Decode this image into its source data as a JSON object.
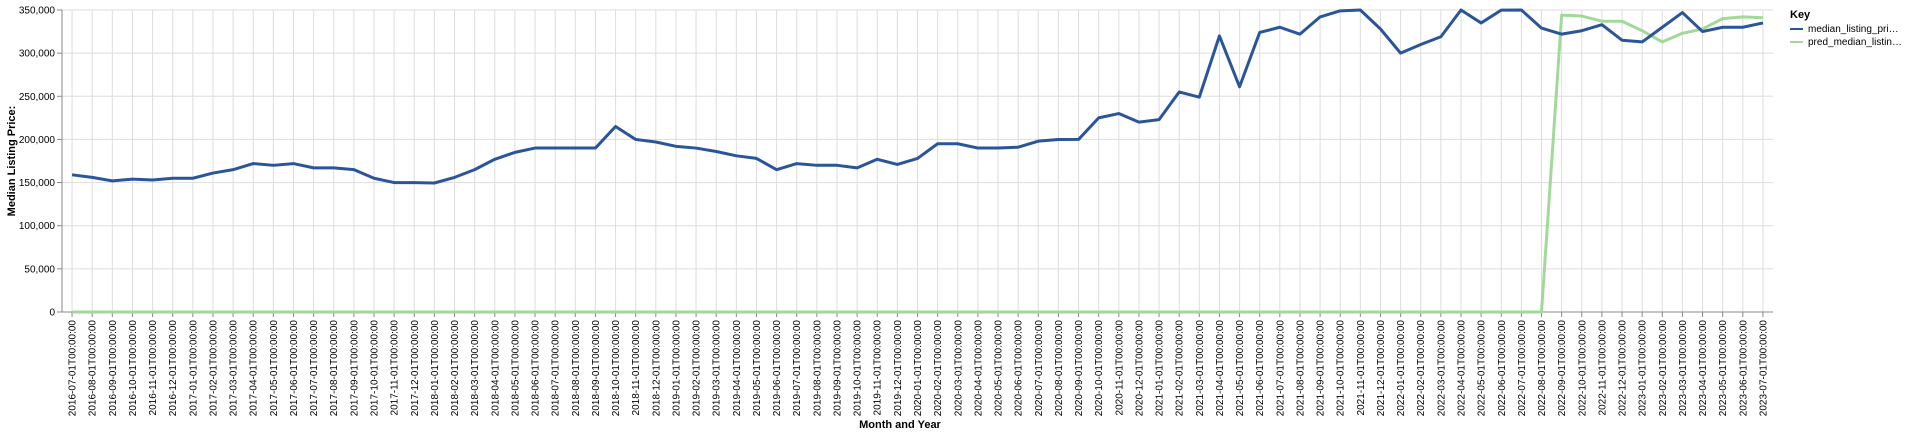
{
  "chart_data": {
    "type": "line",
    "xlabel": "Month and Year",
    "ylabel": "Median Listing Price:",
    "ylim": [
      0,
      350000
    ],
    "yticks": [
      "0",
      "50,000",
      "100,000",
      "150,000",
      "200,000",
      "250,000",
      "300,000",
      "350,000"
    ],
    "ytick_values": [
      0,
      50000,
      100000,
      150000,
      200000,
      250000,
      300000,
      350000
    ],
    "grid": true,
    "legend": {
      "title": "Key",
      "placement": "right"
    },
    "categories": [
      "2016-07-01T00:00:00",
      "2016-08-01T00:00:00",
      "2016-09-01T00:00:00",
      "2016-10-01T00:00:00",
      "2016-11-01T00:00:00",
      "2016-12-01T00:00:00",
      "2017-01-01T00:00:00",
      "2017-02-01T00:00:00",
      "2017-03-01T00:00:00",
      "2017-04-01T00:00:00",
      "2017-05-01T00:00:00",
      "2017-06-01T00:00:00",
      "2017-07-01T00:00:00",
      "2017-08-01T00:00:00",
      "2017-09-01T00:00:00",
      "2017-10-01T00:00:00",
      "2017-11-01T00:00:00",
      "2017-12-01T00:00:00",
      "2018-01-01T00:00:00",
      "2018-02-01T00:00:00",
      "2018-03-01T00:00:00",
      "2018-04-01T00:00:00",
      "2018-05-01T00:00:00",
      "2018-06-01T00:00:00",
      "2018-07-01T00:00:00",
      "2018-08-01T00:00:00",
      "2018-09-01T00:00:00",
      "2018-10-01T00:00:00",
      "2018-11-01T00:00:00",
      "2018-12-01T00:00:00",
      "2019-01-01T00:00:00",
      "2019-02-01T00:00:00",
      "2019-03-01T00:00:00",
      "2019-04-01T00:00:00",
      "2019-05-01T00:00:00",
      "2019-06-01T00:00:00",
      "2019-07-01T00:00:00",
      "2019-08-01T00:00:00",
      "2019-09-01T00:00:00",
      "2019-10-01T00:00:00",
      "2019-11-01T00:00:00",
      "2019-12-01T00:00:00",
      "2020-01-01T00:00:00",
      "2020-02-01T00:00:00",
      "2020-03-01T00:00:00",
      "2020-04-01T00:00:00",
      "2020-05-01T00:00:00",
      "2020-06-01T00:00:00",
      "2020-07-01T00:00:00",
      "2020-08-01T00:00:00",
      "2020-09-01T00:00:00",
      "2020-10-01T00:00:00",
      "2020-11-01T00:00:00",
      "2020-12-01T00:00:00",
      "2021-01-01T00:00:00",
      "2021-02-01T00:00:00",
      "2021-03-01T00:00:00",
      "2021-04-01T00:00:00",
      "2021-05-01T00:00:00",
      "2021-06-01T00:00:00",
      "2021-07-01T00:00:00",
      "2021-08-01T00:00:00",
      "2021-09-01T00:00:00",
      "2021-10-01T00:00:00",
      "2021-11-01T00:00:00",
      "2021-12-01T00:00:00",
      "2022-01-01T00:00:00",
      "2022-02-01T00:00:00",
      "2022-03-01T00:00:00",
      "2022-04-01T00:00:00",
      "2022-05-01T00:00:00",
      "2022-06-01T00:00:00",
      "2022-07-01T00:00:00",
      "2022-08-01T00:00:00",
      "2022-09-01T00:00:00",
      "2022-10-01T00:00:00",
      "2022-11-01T00:00:00",
      "2022-12-01T00:00:00",
      "2023-01-01T00:00:00",
      "2023-02-01T00:00:00",
      "2023-03-01T00:00:00",
      "2023-04-01T00:00:00",
      "2023-05-01T00:00:00",
      "2023-06-01T00:00:00",
      "2023-07-01T00:00:00"
    ],
    "series": [
      {
        "name": "median_listing_pri…",
        "color": "#2a5599",
        "values": [
          159000,
          156000,
          152000,
          154000,
          153000,
          155000,
          155000,
          161000,
          165000,
          172000,
          170000,
          172000,
          167000,
          167000,
          165000,
          155000,
          150000,
          150000,
          149500,
          156000,
          165000,
          177000,
          185000,
          190000,
          190000,
          190000,
          190000,
          215000,
          200000,
          197000,
          192000,
          190000,
          186000,
          181000,
          178000,
          165000,
          172000,
          170000,
          170000,
          167000,
          177000,
          171000,
          178000,
          195000,
          195000,
          190000,
          190000,
          191000,
          198000,
          199900,
          200000,
          225000,
          230000,
          220000,
          223000,
          255000,
          249000,
          320000,
          261000,
          324000,
          330000,
          322000,
          342000,
          349000,
          350000,
          328000,
          300000,
          310000,
          319000,
          350000,
          335000,
          349900,
          350000,
          329000,
          322000,
          326000,
          333000,
          315000,
          313000,
          330000,
          347000,
          325000,
          330000,
          330000,
          335000
        ]
      },
      {
        "name": "pred_median_listin…",
        "color": "#a2d99a",
        "values": [
          0,
          0,
          0,
          0,
          0,
          0,
          0,
          0,
          0,
          0,
          0,
          0,
          0,
          0,
          0,
          0,
          0,
          0,
          0,
          0,
          0,
          0,
          0,
          0,
          0,
          0,
          0,
          0,
          0,
          0,
          0,
          0,
          0,
          0,
          0,
          0,
          0,
          0,
          0,
          0,
          0,
          0,
          0,
          0,
          0,
          0,
          0,
          0,
          0,
          0,
          0,
          0,
          0,
          0,
          0,
          0,
          0,
          0,
          0,
          0,
          0,
          0,
          0,
          0,
          0,
          0,
          0,
          0,
          0,
          0,
          0,
          0,
          0,
          0,
          344000,
          343000,
          337000,
          337000,
          326000,
          313000,
          323000,
          328000,
          340000,
          342000,
          341000
        ]
      }
    ]
  }
}
